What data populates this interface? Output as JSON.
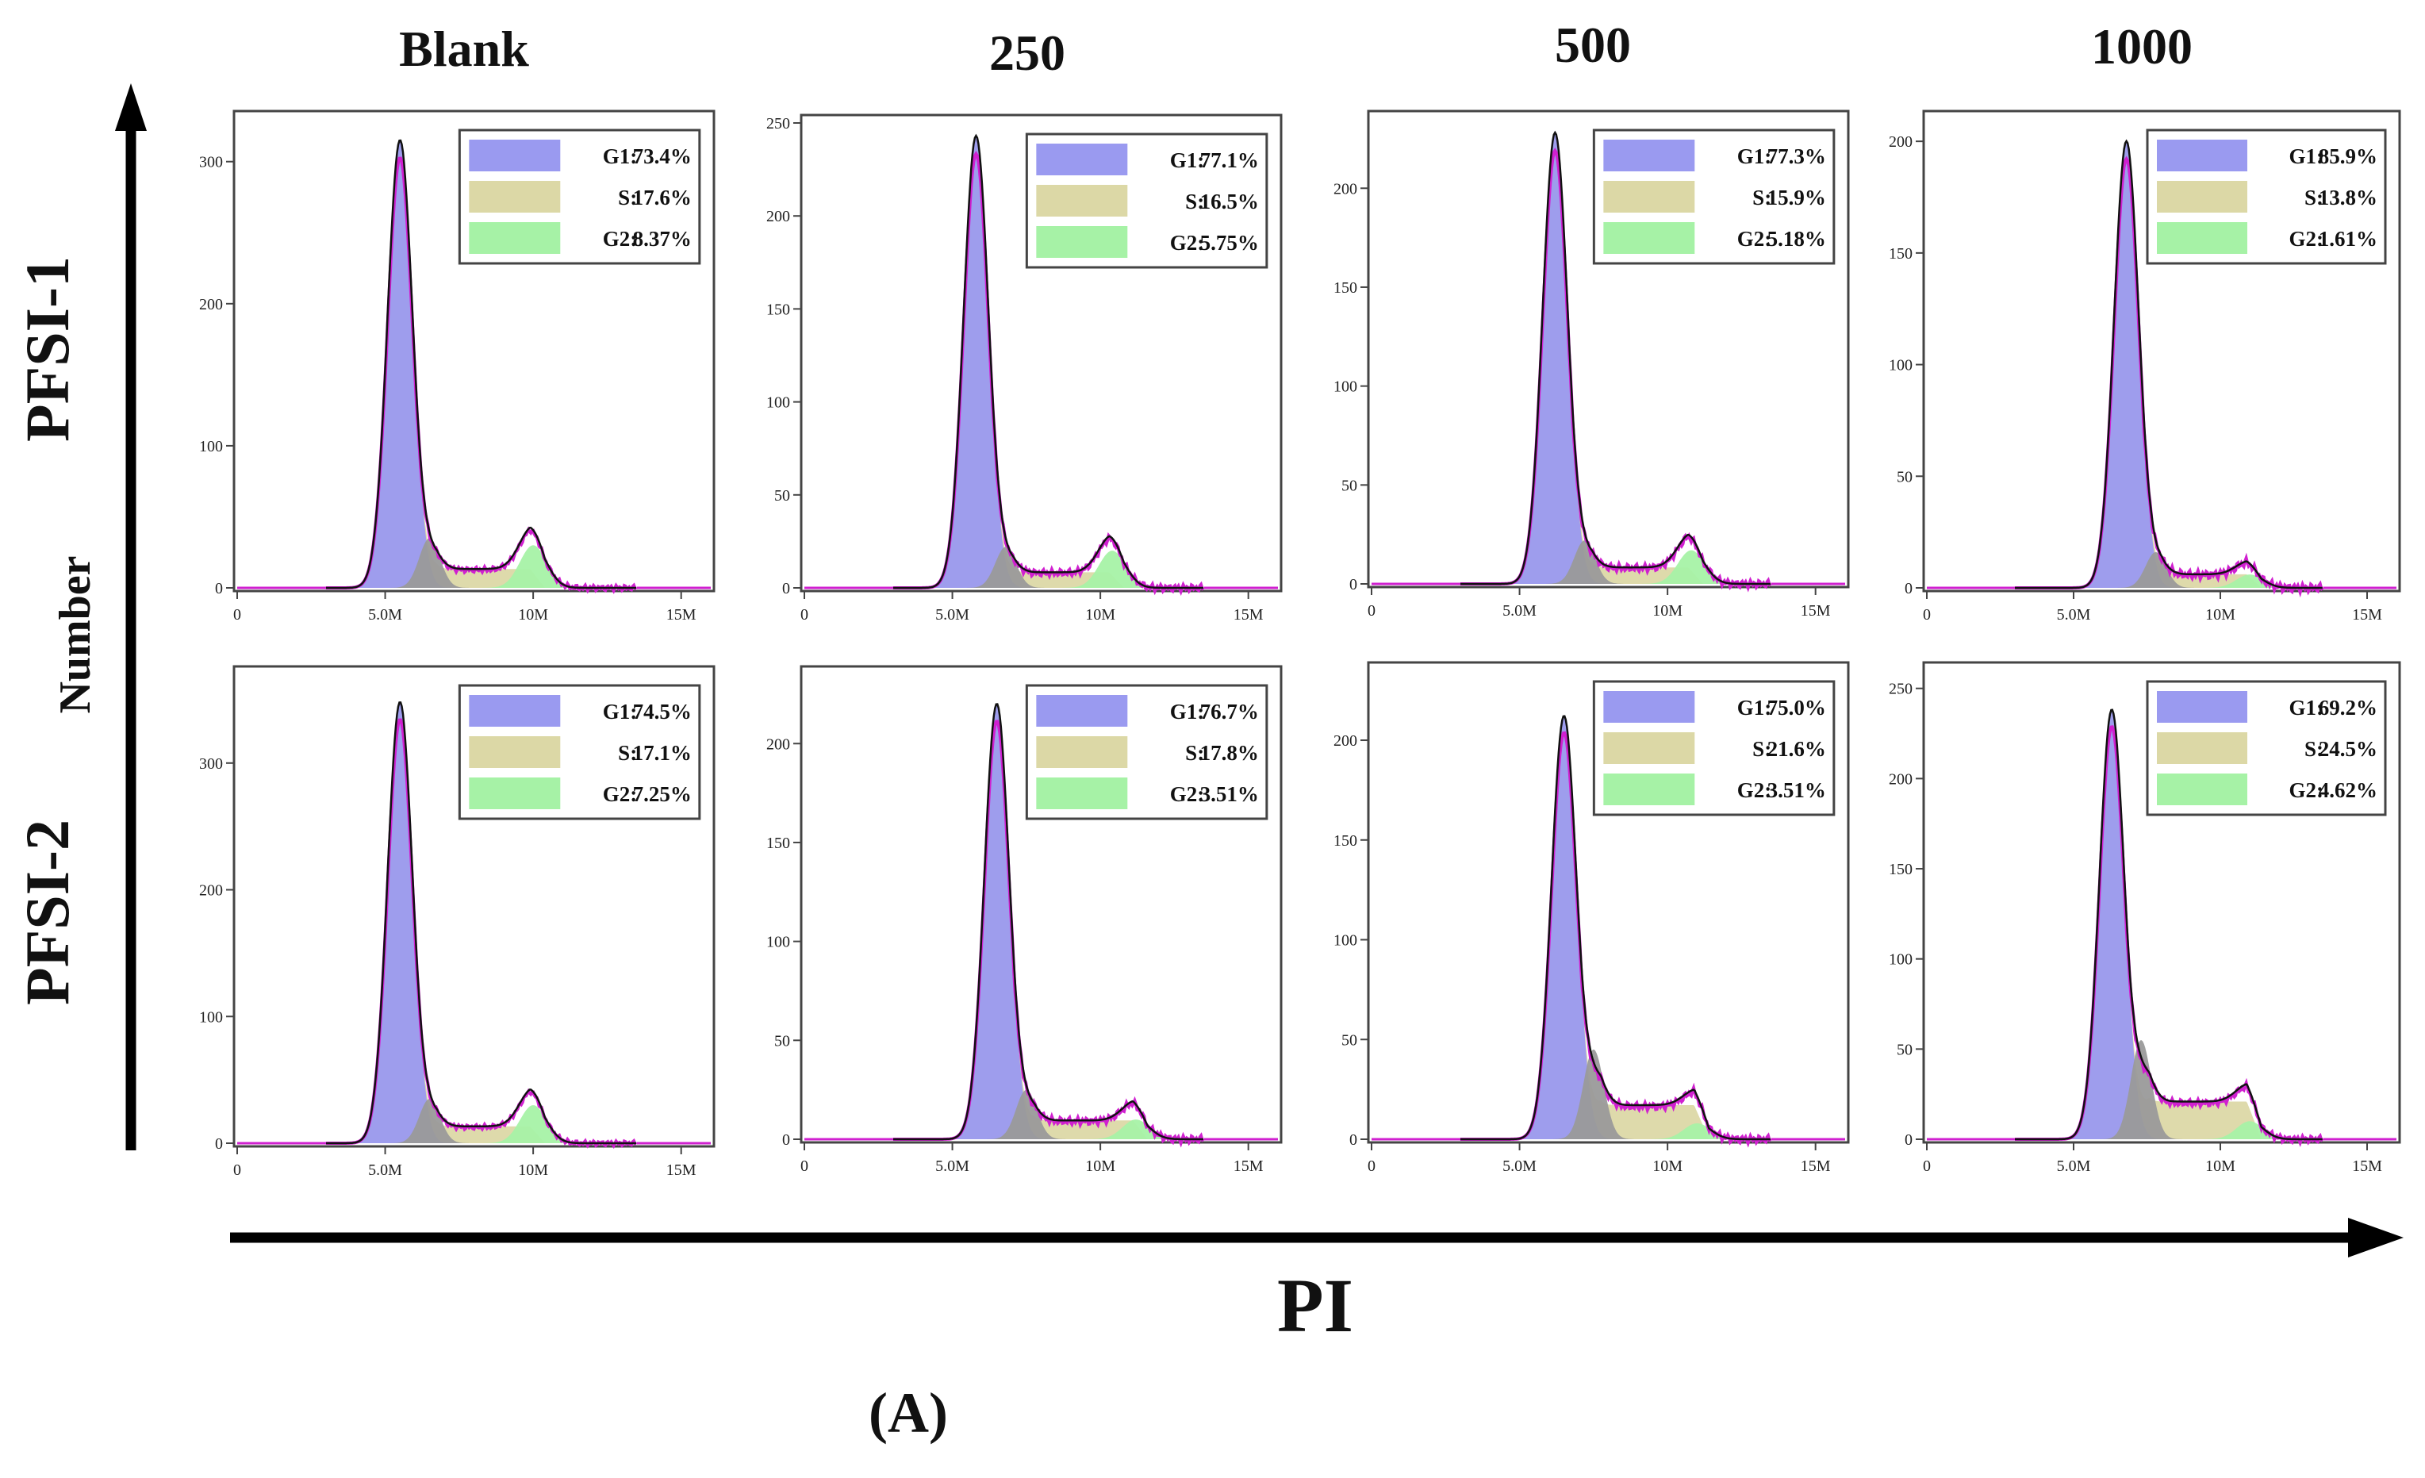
{
  "figure": {
    "columns": [
      "Blank",
      "250",
      "500",
      "1000"
    ],
    "rows": [
      "PFSI-1",
      "PFSI-2"
    ],
    "y_axis_label": "Number",
    "x_axis_label": "PI",
    "panel_label": "(A)"
  },
  "chart_data": [
    {
      "type": "area",
      "row": "PFSI-1",
      "column": "Blank",
      "ylim": [
        0,
        330
      ],
      "yticks": [
        0,
        100,
        200,
        300
      ],
      "xticks": [
        "0",
        "5.0M",
        "10M",
        "15M"
      ],
      "xlim": [
        0,
        16
      ],
      "legend": [
        {
          "label": "G1:",
          "value": "73.4%"
        },
        {
          "label": "S:",
          "value": "17.6%"
        },
        {
          "label": "G2:",
          "value": "8.37%"
        }
      ],
      "g1_peak": {
        "x": 5.5,
        "count": 315
      },
      "g2_peak": {
        "x": 10.0,
        "count": 30
      },
      "s_peak": {
        "count": 35
      }
    },
    {
      "type": "area",
      "row": "PFSI-1",
      "column": "250",
      "ylim": [
        0,
        250
      ],
      "yticks": [
        0,
        50,
        100,
        150,
        200,
        250
      ],
      "xticks": [
        "0",
        "5.0M",
        "10M",
        "15M"
      ],
      "xlim": [
        0,
        16
      ],
      "legend": [
        {
          "label": "G1:",
          "value": "77.1%"
        },
        {
          "label": "S:",
          "value": "16.5%"
        },
        {
          "label": "G2:",
          "value": "5.75%"
        }
      ],
      "g1_peak": {
        "x": 5.8,
        "count": 243
      },
      "g2_peak": {
        "x": 10.4,
        "count": 20
      },
      "s_peak": {
        "count": 22
      }
    },
    {
      "type": "area",
      "row": "PFSI-1",
      "column": "500",
      "ylim": [
        0,
        235
      ],
      "yticks": [
        0,
        50,
        100,
        150,
        200
      ],
      "xticks": [
        "0",
        "5.0M",
        "10M",
        "15M"
      ],
      "xlim": [
        0,
        16
      ],
      "legend": [
        {
          "label": "G1:",
          "value": "77.3%"
        },
        {
          "label": "S:",
          "value": "15.9%"
        },
        {
          "label": "G2:",
          "value": "5.18%"
        }
      ],
      "g1_peak": {
        "x": 6.2,
        "count": 228
      },
      "g2_peak": {
        "x": 10.8,
        "count": 17
      },
      "s_peak": {
        "count": 22
      }
    },
    {
      "type": "area",
      "row": "PFSI-1",
      "column": "1000",
      "ylim": [
        0,
        210
      ],
      "yticks": [
        0,
        50,
        100,
        150,
        200
      ],
      "xticks": [
        "0",
        "5.0M",
        "10M",
        "15M"
      ],
      "xlim": [
        0,
        16
      ],
      "legend": [
        {
          "label": "G1:",
          "value": "85.9%"
        },
        {
          "label": "S:",
          "value": "13.8%"
        },
        {
          "label": "G2:",
          "value": "1.61%"
        }
      ],
      "g1_peak": {
        "x": 6.8,
        "count": 200
      },
      "g2_peak": {
        "x": 11.0,
        "count": 6
      },
      "s_peak": {
        "count": 16
      }
    },
    {
      "type": "area",
      "row": "PFSI-2",
      "column": "Blank",
      "ylim": [
        0,
        370
      ],
      "yticks": [
        0,
        100,
        200,
        300
      ],
      "xticks": [
        "0",
        "5.0M",
        "10M",
        "15M"
      ],
      "xlim": [
        0,
        16
      ],
      "legend": [
        {
          "label": "G1:",
          "value": "74.5%"
        },
        {
          "label": "S:",
          "value": "17.1%"
        },
        {
          "label": "G2:",
          "value": "7.25%"
        }
      ],
      "g1_peak": {
        "x": 5.5,
        "count": 348
      },
      "g2_peak": {
        "x": 10.0,
        "count": 30
      },
      "s_peak": {
        "count": 35
      }
    },
    {
      "type": "area",
      "row": "PFSI-2",
      "column": "250",
      "ylim": [
        0,
        235
      ],
      "yticks": [
        0,
        50,
        100,
        150,
        200
      ],
      "xticks": [
        "0",
        "5.0M",
        "10M",
        "15M"
      ],
      "xlim": [
        0,
        16
      ],
      "legend": [
        {
          "label": "G1:",
          "value": "76.7%"
        },
        {
          "label": "S:",
          "value": "17.8%"
        },
        {
          "label": "G2:",
          "value": "3.51%"
        }
      ],
      "g1_peak": {
        "x": 6.5,
        "count": 220
      },
      "g2_peak": {
        "x": 11.2,
        "count": 10
      },
      "s_peak": {
        "count": 25
      }
    },
    {
      "type": "area",
      "row": "PFSI-2",
      "column": "500",
      "ylim": [
        0,
        235
      ],
      "yticks": [
        0,
        50,
        100,
        150,
        200
      ],
      "xticks": [
        "0",
        "5.0M",
        "10M",
        "15M"
      ],
      "xlim": [
        0,
        16
      ],
      "legend": [
        {
          "label": "G1:",
          "value": "75.0%"
        },
        {
          "label": "S:",
          "value": "21.6%"
        },
        {
          "label": "G2:",
          "value": "3.51%"
        }
      ],
      "g1_peak": {
        "x": 6.5,
        "count": 212
      },
      "g2_peak": {
        "x": 11.0,
        "count": 8
      },
      "s_peak": {
        "count": 45
      }
    },
    {
      "type": "area",
      "row": "PFSI-2",
      "column": "1000",
      "ylim": [
        0,
        260
      ],
      "yticks": [
        0,
        50,
        100,
        150,
        200,
        250
      ],
      "xticks": [
        "0",
        "5.0M",
        "10M",
        "15M"
      ],
      "xlim": [
        0,
        16
      ],
      "legend": [
        {
          "label": "G1:",
          "value": "69.2%"
        },
        {
          "label": "S:",
          "value": "24.5%"
        },
        {
          "label": "G2:",
          "value": "4.62%"
        }
      ],
      "g1_peak": {
        "x": 6.3,
        "count": 238
      },
      "g2_peak": {
        "x": 11.0,
        "count": 10
      },
      "s_peak": {
        "count": 55
      }
    }
  ],
  "colors": {
    "g1": "#9a9af0",
    "s": "#dcd8a6",
    "g2": "#a6f2a6",
    "overlap": "#9a9a9a",
    "raw": "#111111",
    "fit": "#d020d0"
  }
}
